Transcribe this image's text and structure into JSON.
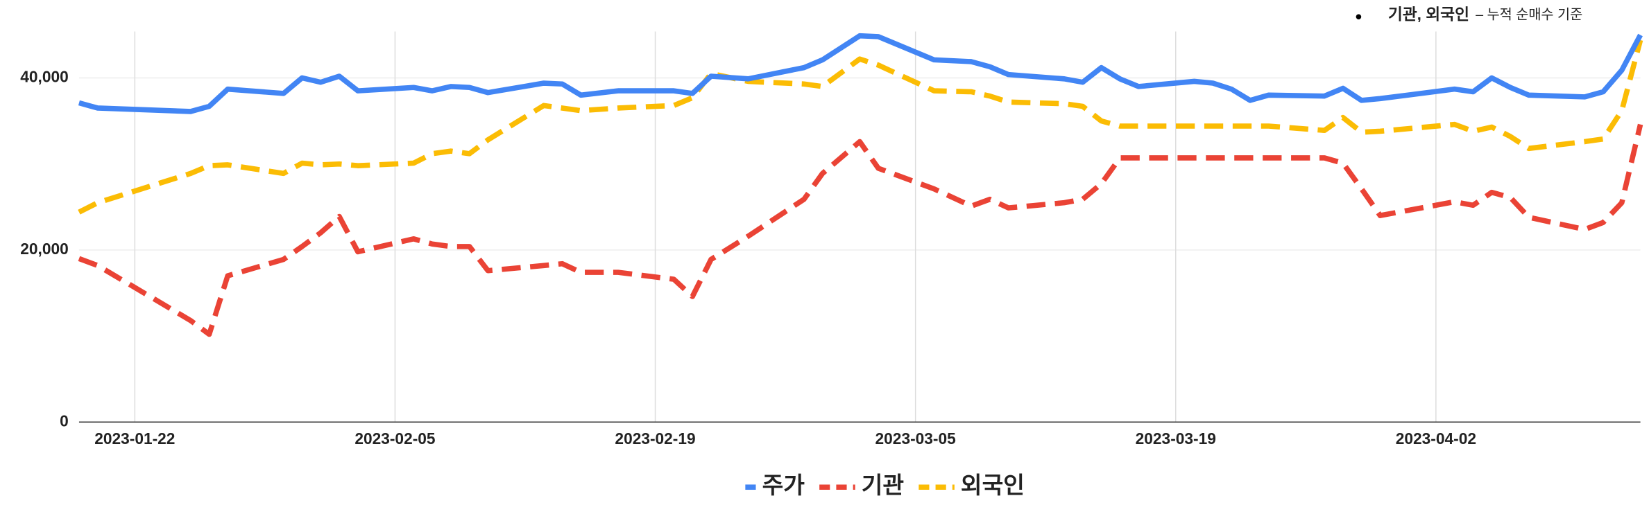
{
  "chart_data": {
    "type": "line",
    "annotation": [
      "기관, 외국인",
      "– 누적 순매수 기준"
    ],
    "x": [
      "2023-01-19",
      "2023-01-20",
      "2023-01-25",
      "2023-01-26",
      "2023-01-27",
      "2023-01-30",
      "2023-01-31",
      "2023-02-01",
      "2023-02-02",
      "2023-02-03",
      "2023-02-06",
      "2023-02-07",
      "2023-02-08",
      "2023-02-09",
      "2023-02-10",
      "2023-02-13",
      "2023-02-14",
      "2023-02-15",
      "2023-02-17",
      "2023-02-20",
      "2023-02-21",
      "2023-02-22",
      "2023-02-24",
      "2023-02-27",
      "2023-02-28",
      "2023-03-02",
      "2023-03-03",
      "2023-03-06",
      "2023-03-08",
      "2023-03-09",
      "2023-03-10",
      "2023-03-13",
      "2023-03-14",
      "2023-03-15",
      "2023-03-16",
      "2023-03-17",
      "2023-03-20",
      "2023-03-21",
      "2023-03-22",
      "2023-03-23",
      "2023-03-24",
      "2023-03-27",
      "2023-03-28",
      "2023-03-29",
      "2023-03-30",
      "2023-04-03",
      "2023-04-04",
      "2023-04-05",
      "2023-04-06",
      "2023-04-07",
      "2023-04-10",
      "2023-04-11",
      "2023-04-12",
      "2023-04-13"
    ],
    "series": [
      {
        "name": "주가",
        "color": "#4285f4",
        "style": "solid",
        "values": [
          37100,
          36500,
          36100,
          36700,
          38700,
          38200,
          40000,
          39500,
          40200,
          38500,
          38900,
          38500,
          39000,
          38900,
          38300,
          39400,
          39300,
          38000,
          38500,
          38500,
          38200,
          40200,
          39900,
          41200,
          42100,
          44900,
          44800,
          42100,
          41900,
          41300,
          40400,
          39900,
          39500,
          41200,
          39900,
          39000,
          39600,
          39400,
          38700,
          37400,
          38000,
          37900,
          38800,
          37400,
          37600,
          38700,
          38400,
          40000,
          38900,
          38000,
          37800,
          38400,
          40900,
          45000
        ]
      },
      {
        "name": "기관",
        "color": "#ea4335",
        "style": "dashed",
        "values": [
          19000,
          18200,
          11800,
          10200,
          17000,
          18900,
          20400,
          22000,
          23900,
          19800,
          21300,
          20700,
          20400,
          20400,
          17600,
          18200,
          18400,
          17400,
          17400,
          16600,
          14600,
          18900,
          21600,
          25900,
          28900,
          32600,
          29500,
          27100,
          25100,
          25900,
          24900,
          25500,
          25900,
          27700,
          30700,
          30700,
          30700,
          30700,
          30700,
          30700,
          30700,
          30700,
          30100,
          27100,
          24000,
          25600,
          25200,
          26700,
          26100,
          23800,
          22400,
          23200,
          25500,
          34600
        ]
      },
      {
        "name": "외국인",
        "color": "#fbbc04",
        "style": "dashed",
        "values": [
          24400,
          25500,
          28900,
          29800,
          29900,
          28900,
          30100,
          29900,
          30000,
          29800,
          30100,
          31200,
          31500,
          31200,
          32800,
          36800,
          36500,
          36200,
          36500,
          36800,
          37700,
          40500,
          39600,
          39300,
          39000,
          42200,
          41500,
          38500,
          38400,
          37900,
          37200,
          37000,
          36700,
          35000,
          34400,
          34400,
          34400,
          34400,
          34400,
          34400,
          34400,
          33900,
          35400,
          33700,
          33800,
          34600,
          33800,
          34300,
          33200,
          31800,
          32600,
          32900,
          36200,
          44400
        ]
      }
    ],
    "xlim": [
      "2023-01-19",
      "2023-04-13"
    ],
    "xticks": [
      "2023-01-22",
      "2023-02-05",
      "2023-02-19",
      "2023-03-05",
      "2023-03-19",
      "2023-04-02"
    ],
    "ylim": [
      0,
      45400
    ],
    "yticks": [
      0,
      {
        "value": 20000,
        "label": "20,000"
      },
      {
        "value": 40000,
        "label": "40,000"
      }
    ],
    "grid": true,
    "legend": "bottom"
  }
}
